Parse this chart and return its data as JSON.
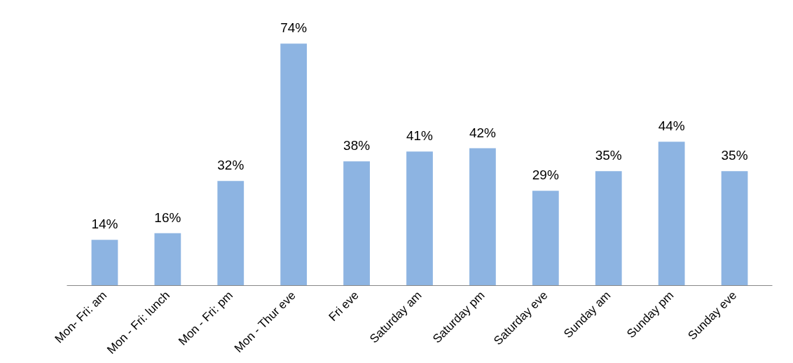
{
  "chart_data": {
    "type": "bar",
    "categories": [
      "Mon- Fri: am",
      "Mon - Fri: lunch",
      "Mon - Fri: pm",
      "Mon - Thur eve",
      "Fri eve",
      "Saturday am",
      "Saturday pm",
      "Saturday eve",
      "Sunday am",
      "Sunday pm",
      "Sunday eve"
    ],
    "values": [
      14,
      16,
      32,
      74,
      38,
      41,
      42,
      29,
      35,
      44,
      35
    ],
    "value_labels": [
      "14%",
      "16%",
      "32%",
      "74%",
      "38%",
      "41%",
      "42%",
      "29%",
      "35%",
      "44%",
      "35%"
    ],
    "color": "#8db4e2",
    "tick_labels": "x",
    "grid": false
  }
}
